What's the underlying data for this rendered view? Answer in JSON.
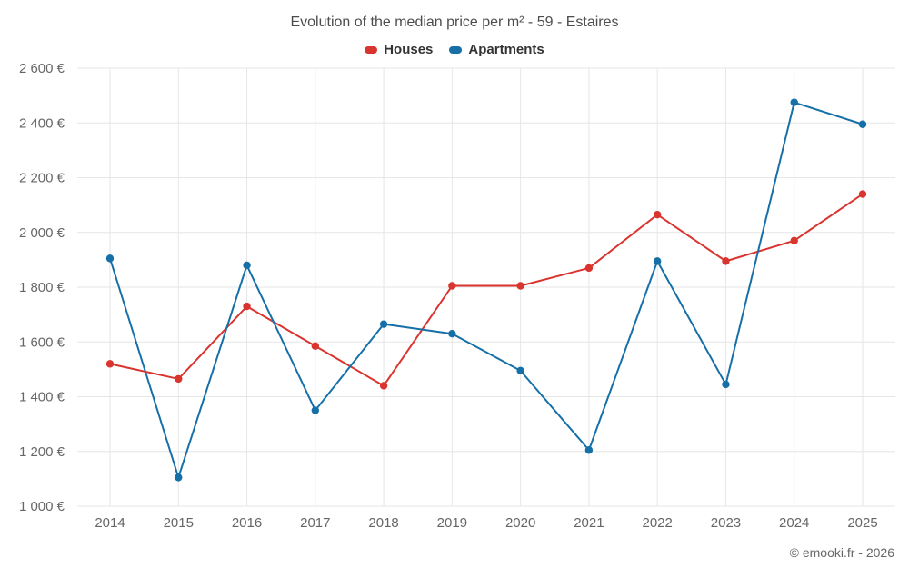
{
  "chart": {
    "title": "Evolution of the median price per m² - 59 - Estaires",
    "copyright": "© emooki.fr - 2026"
  },
  "chart_data": {
    "type": "line",
    "title": "Evolution of the median price per m² - 59 - Estaires",
    "x": [
      2014,
      2015,
      2016,
      2017,
      2018,
      2019,
      2020,
      2021,
      2022,
      2023,
      2024,
      2025
    ],
    "series": [
      {
        "name": "Houses",
        "color": "#d9342e",
        "values": [
          1520,
          1465,
          1730,
          1585,
          1440,
          1805,
          1805,
          1870,
          2065,
          1895,
          1970,
          2140
        ]
      },
      {
        "name": "Apartments",
        "color": "#1670a8",
        "values": [
          1905,
          1105,
          1880,
          1350,
          1665,
          1630,
          1495,
          1205,
          1895,
          1445,
          2475,
          2395
        ]
      }
    ],
    "ylim": [
      1000,
      2600
    ],
    "ytick_step": 200,
    "ytick_suffix": " €",
    "grid": true,
    "grid_color": "#e6e6e6",
    "axis_text_color": "#666666",
    "legend_position": "top",
    "ylabel": "",
    "xlabel": ""
  }
}
